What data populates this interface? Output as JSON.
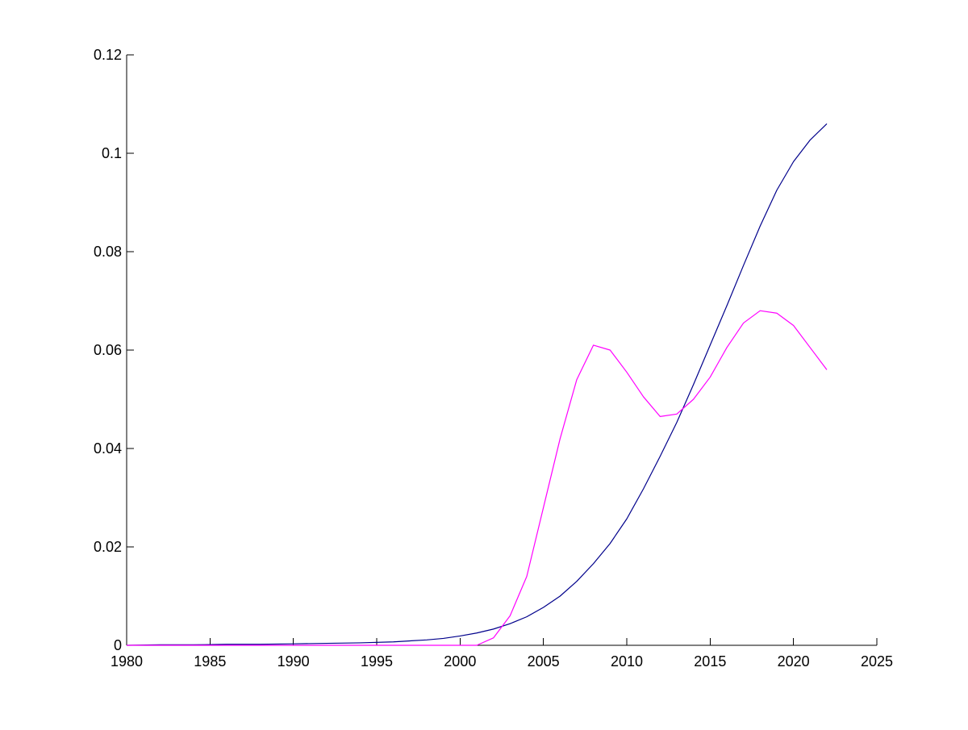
{
  "chart_data": {
    "type": "line",
    "title": "",
    "xlabel": "",
    "ylabel": "",
    "xlim": [
      1980,
      2025
    ],
    "ylim": [
      0,
      0.12
    ],
    "x_ticks": [
      "1980",
      "1985",
      "1990",
      "1995",
      "2000",
      "2005",
      "2010",
      "2015",
      "2020",
      "2025"
    ],
    "y_ticks": [
      "0",
      "0.02",
      "0.04",
      "0.06",
      "0.08",
      "0.1",
      "0.12"
    ],
    "grid": false,
    "legend": "none",
    "series": [
      {
        "color": "#00008b",
        "x": [
          1980,
          1982,
          1984,
          1986,
          1988,
          1990,
          1992,
          1994,
          1996,
          1998,
          1999,
          2000,
          2001,
          2002,
          2003,
          2004,
          2005,
          2006,
          2007,
          2008,
          2009,
          2010,
          2011,
          2012,
          2013,
          2014,
          2015,
          2016,
          2017,
          2018,
          2019,
          2020,
          2021,
          2022
        ],
        "y": [
          0.0,
          0.0001,
          0.0001,
          0.0002,
          0.0002,
          0.0003,
          0.0004,
          0.0005,
          0.0007,
          0.0011,
          0.0014,
          0.0019,
          0.0025,
          0.0033,
          0.0044,
          0.0058,
          0.0077,
          0.01,
          0.013,
          0.0166,
          0.0207,
          0.0257,
          0.0318,
          0.0384,
          0.0453,
          0.053,
          0.061,
          0.069,
          0.0772,
          0.0852,
          0.0925,
          0.0983,
          0.1027,
          0.106
        ]
      },
      {
        "color": "#ff00ff",
        "x": [
          1980,
          2001,
          2002,
          2003,
          2004,
          2005,
          2006,
          2007,
          2008,
          2009,
          2010,
          2011,
          2012,
          2013,
          2014,
          2015,
          2016,
          2017,
          2018,
          2019,
          2020,
          2021,
          2022
        ],
        "y": [
          0.0,
          0.0,
          0.0015,
          0.006,
          0.014,
          0.028,
          0.042,
          0.054,
          0.061,
          0.06,
          0.0555,
          0.0505,
          0.0465,
          0.047,
          0.05,
          0.0545,
          0.0605,
          0.0655,
          0.068,
          0.0675,
          0.065,
          0.0605,
          0.056
        ]
      }
    ]
  }
}
